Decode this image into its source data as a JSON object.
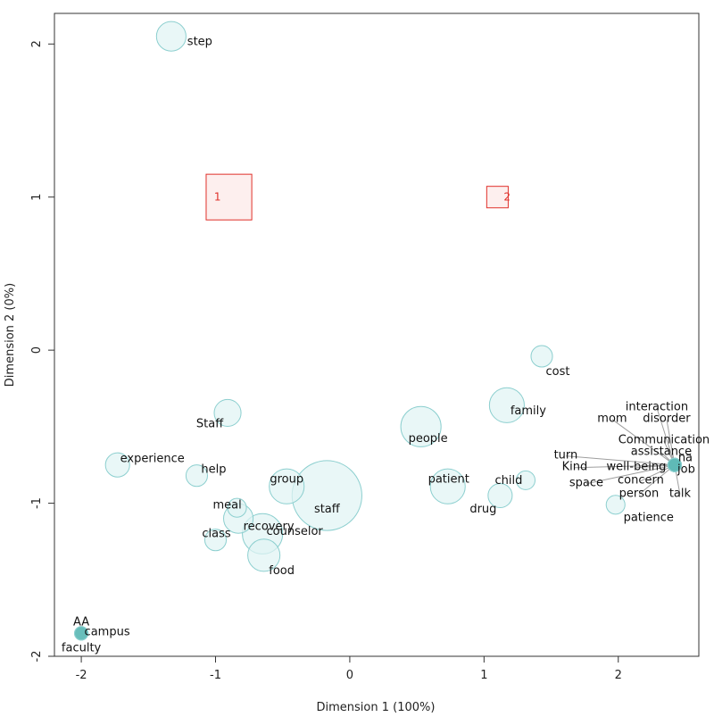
{
  "chart_data": {
    "type": "scatter",
    "title": "",
    "xlabel": "Dimension 1 (100%)",
    "ylabel": "Dimension 2 (0%)",
    "xlim": [
      -2.2,
      2.6
    ],
    "ylim": [
      -2.0,
      2.2
    ],
    "x_ticks": [
      {
        "value": -2,
        "label": "-2"
      },
      {
        "value": -1,
        "label": "-1"
      },
      {
        "value": 0,
        "label": "0"
      },
      {
        "value": 1,
        "label": "1"
      },
      {
        "value": 2,
        "label": "2"
      }
    ],
    "y_ticks": [
      {
        "value": -2,
        "label": "-2"
      },
      {
        "value": -1,
        "label": "-1"
      },
      {
        "value": 0,
        "label": "0"
      },
      {
        "value": 1,
        "label": "1"
      },
      {
        "value": 2,
        "label": "2"
      }
    ],
    "colors": {
      "word_fill": "#dff3f3",
      "word_stroke": "#8ccfcf",
      "word_dark_fill": "#5fb9b7",
      "category_fill": "#fdeceb",
      "category_stroke": "#e0302a",
      "leader": "#9e9e9e"
    },
    "categories": [
      {
        "label": "1",
        "x": -0.9,
        "y": 1.0,
        "size": 0.17
      },
      {
        "label": "2",
        "x": 1.1,
        "y": 1.0,
        "size": 0.08
      }
    ],
    "words": [
      {
        "label": "step",
        "x": -1.33,
        "y": 2.05,
        "size": 0.11
      },
      {
        "label": "cost",
        "x": 1.43,
        "y": -0.04,
        "size": 0.08
      },
      {
        "label": "family",
        "x": 1.17,
        "y": -0.36,
        "size": 0.13
      },
      {
        "label": "Staff",
        "x": -0.91,
        "y": -0.41,
        "size": 0.1
      },
      {
        "label": "people",
        "x": 0.53,
        "y": -0.5,
        "size": 0.15
      },
      {
        "label": "experience",
        "x": -1.73,
        "y": -0.75,
        "size": 0.09
      },
      {
        "label": "help",
        "x": -1.14,
        "y": -0.82,
        "size": 0.08
      },
      {
        "label": "patient",
        "x": 0.73,
        "y": -0.89,
        "size": 0.13
      },
      {
        "label": "child",
        "x": 1.31,
        "y": -0.85,
        "size": 0.07
      },
      {
        "label": "drug",
        "x": 1.12,
        "y": -0.95,
        "size": 0.09
      },
      {
        "label": "group",
        "x": -0.47,
        "y": -0.89,
        "size": 0.13
      },
      {
        "label": "staff",
        "x": -0.17,
        "y": -0.95,
        "size": 0.26
      },
      {
        "label": "meal",
        "x": -0.84,
        "y": -1.03,
        "size": 0.07
      },
      {
        "label": "recovery",
        "x": -0.83,
        "y": -1.1,
        "size": 0.11
      },
      {
        "label": "class",
        "x": -1.0,
        "y": -1.24,
        "size": 0.08
      },
      {
        "label": "counselor",
        "x": -0.65,
        "y": -1.2,
        "size": 0.15
      },
      {
        "label": "food",
        "x": -0.64,
        "y": -1.34,
        "size": 0.12
      },
      {
        "label": "patience",
        "x": 1.98,
        "y": -1.01,
        "size": 0.07
      },
      {
        "label": "AA",
        "x": -2.0,
        "y": -1.85,
        "size": 0.05
      },
      {
        "label": "campus",
        "x": -2.0,
        "y": -1.85,
        "size": 0.05
      },
      {
        "label": "faculty",
        "x": -2.0,
        "y": -1.85,
        "size": 0.05
      },
      {
        "label": "interaction",
        "x": 2.42,
        "y": -0.75,
        "size": 0.05
      },
      {
        "label": "mom",
        "x": 2.42,
        "y": -0.75,
        "size": 0.05
      },
      {
        "label": "disorder",
        "x": 2.42,
        "y": -0.75,
        "size": 0.05
      },
      {
        "label": "Communication",
        "x": 2.42,
        "y": -0.75,
        "size": 0.05
      },
      {
        "label": "assistance",
        "x": 2.42,
        "y": -0.75,
        "size": 0.05
      },
      {
        "label": "na",
        "x": 2.42,
        "y": -0.75,
        "size": 0.05
      },
      {
        "label": "turn",
        "x": 2.42,
        "y": -0.75,
        "size": 0.05
      },
      {
        "label": "well-being",
        "x": 2.42,
        "y": -0.75,
        "size": 0.05
      },
      {
        "label": "job",
        "x": 2.42,
        "y": -0.75,
        "size": 0.05
      },
      {
        "label": "Kind",
        "x": 2.42,
        "y": -0.75,
        "size": 0.05
      },
      {
        "label": "concern",
        "x": 2.42,
        "y": -0.75,
        "size": 0.05
      },
      {
        "label": "space",
        "x": 2.42,
        "y": -0.75,
        "size": 0.05
      },
      {
        "label": "person",
        "x": 2.42,
        "y": -0.75,
        "size": 0.05
      },
      {
        "label": "talk",
        "x": 2.42,
        "y": -0.75,
        "size": 0.05
      }
    ]
  }
}
